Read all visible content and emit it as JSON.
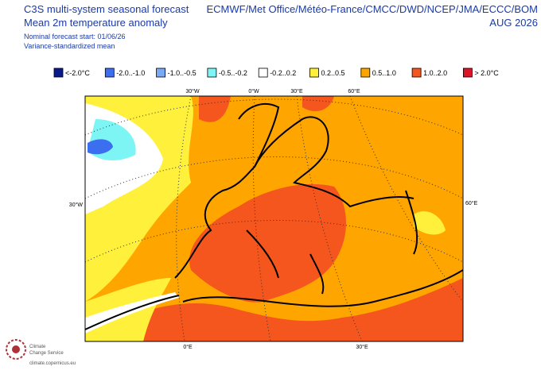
{
  "header": {
    "title": [
      "C3S multi-system seasonal forecast",
      "Mean 2m temperature anomaly"
    ],
    "notes": [
      "Nominal forecast start: 01/06/26",
      "Variance-standardized mean"
    ],
    "centres": "ECMWF/Met Office/Météo-France/CMCC/DWD/NCEP/JMA/ECCC/BOM",
    "period": "AUG 2026"
  },
  "legend": {
    "items": [
      {
        "label": "<-2.0°C",
        "color": "#0a1a8c"
      },
      {
        "label": "-2.0..-1.0",
        "color": "#3c6ef0"
      },
      {
        "label": "-1.0..-0.5",
        "color": "#78aaf5"
      },
      {
        "label": "-0.5..-0.2",
        "color": "#7ef5f5"
      },
      {
        "label": "-0.2..0.2",
        "color": "#ffffff"
      },
      {
        "label": "0.2..0.5",
        "color": "#fff03c"
      },
      {
        "label": "0.5..1.0",
        "color": "#ffa500"
      },
      {
        "label": "1.0..2.0",
        "color": "#f5561e"
      },
      {
        "label": "> 2.0°C",
        "color": "#dc1428"
      }
    ]
  },
  "map": {
    "top_labels": [
      "30°W",
      "0°W",
      "30°E",
      "60°E"
    ],
    "left_label": "30°W",
    "right_label": "60°E",
    "bottom_labels": [
      "0°E",
      "30°E"
    ]
  },
  "footer": {
    "logo": [
      "Climate",
      "Change Service"
    ],
    "url": "climate.copernicus.eu"
  }
}
